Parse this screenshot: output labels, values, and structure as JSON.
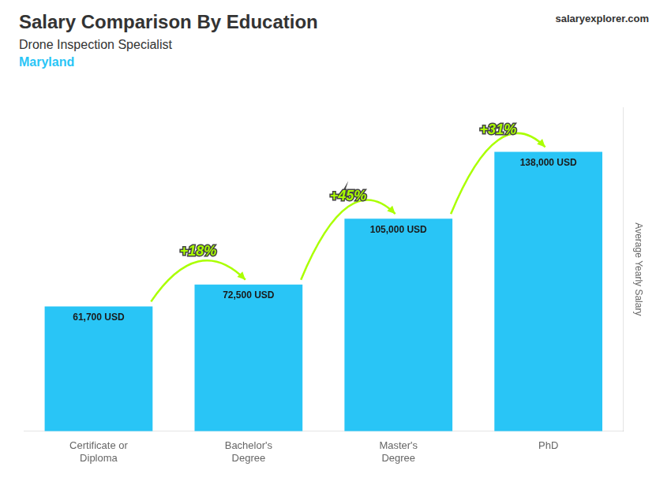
{
  "chart_data": {
    "type": "bar",
    "title": "Salary Comparison By Education",
    "subtitle": "Drone Inspection Specialist",
    "ylabel": "Average Yearly Salary",
    "categories": [
      "Certificate or\nDiploma",
      "Bachelor's\nDegree",
      "Master's\nDegree",
      "PhD"
    ],
    "values": [
      61700,
      72500,
      105000,
      138000
    ],
    "value_labels": [
      "61,700 USD",
      "72,500 USD",
      "105,000 USD",
      "138,000 USD"
    ],
    "data_labels": true,
    "color": "#29c5f6",
    "ylim": [
      0,
      160000
    ],
    "grid": false,
    "tick_labels": "x",
    "annotations": [
      {
        "text": "Maryland",
        "color": "#29c5f6"
      },
      {
        "text": "+18%",
        "color": "#aaff00"
      },
      {
        "text": "+45%",
        "color": "#aaff00"
      },
      {
        "text": "+31%",
        "color": "#aaff00"
      },
      {
        "text": "salaryexplorer.com"
      }
    ]
  }
}
